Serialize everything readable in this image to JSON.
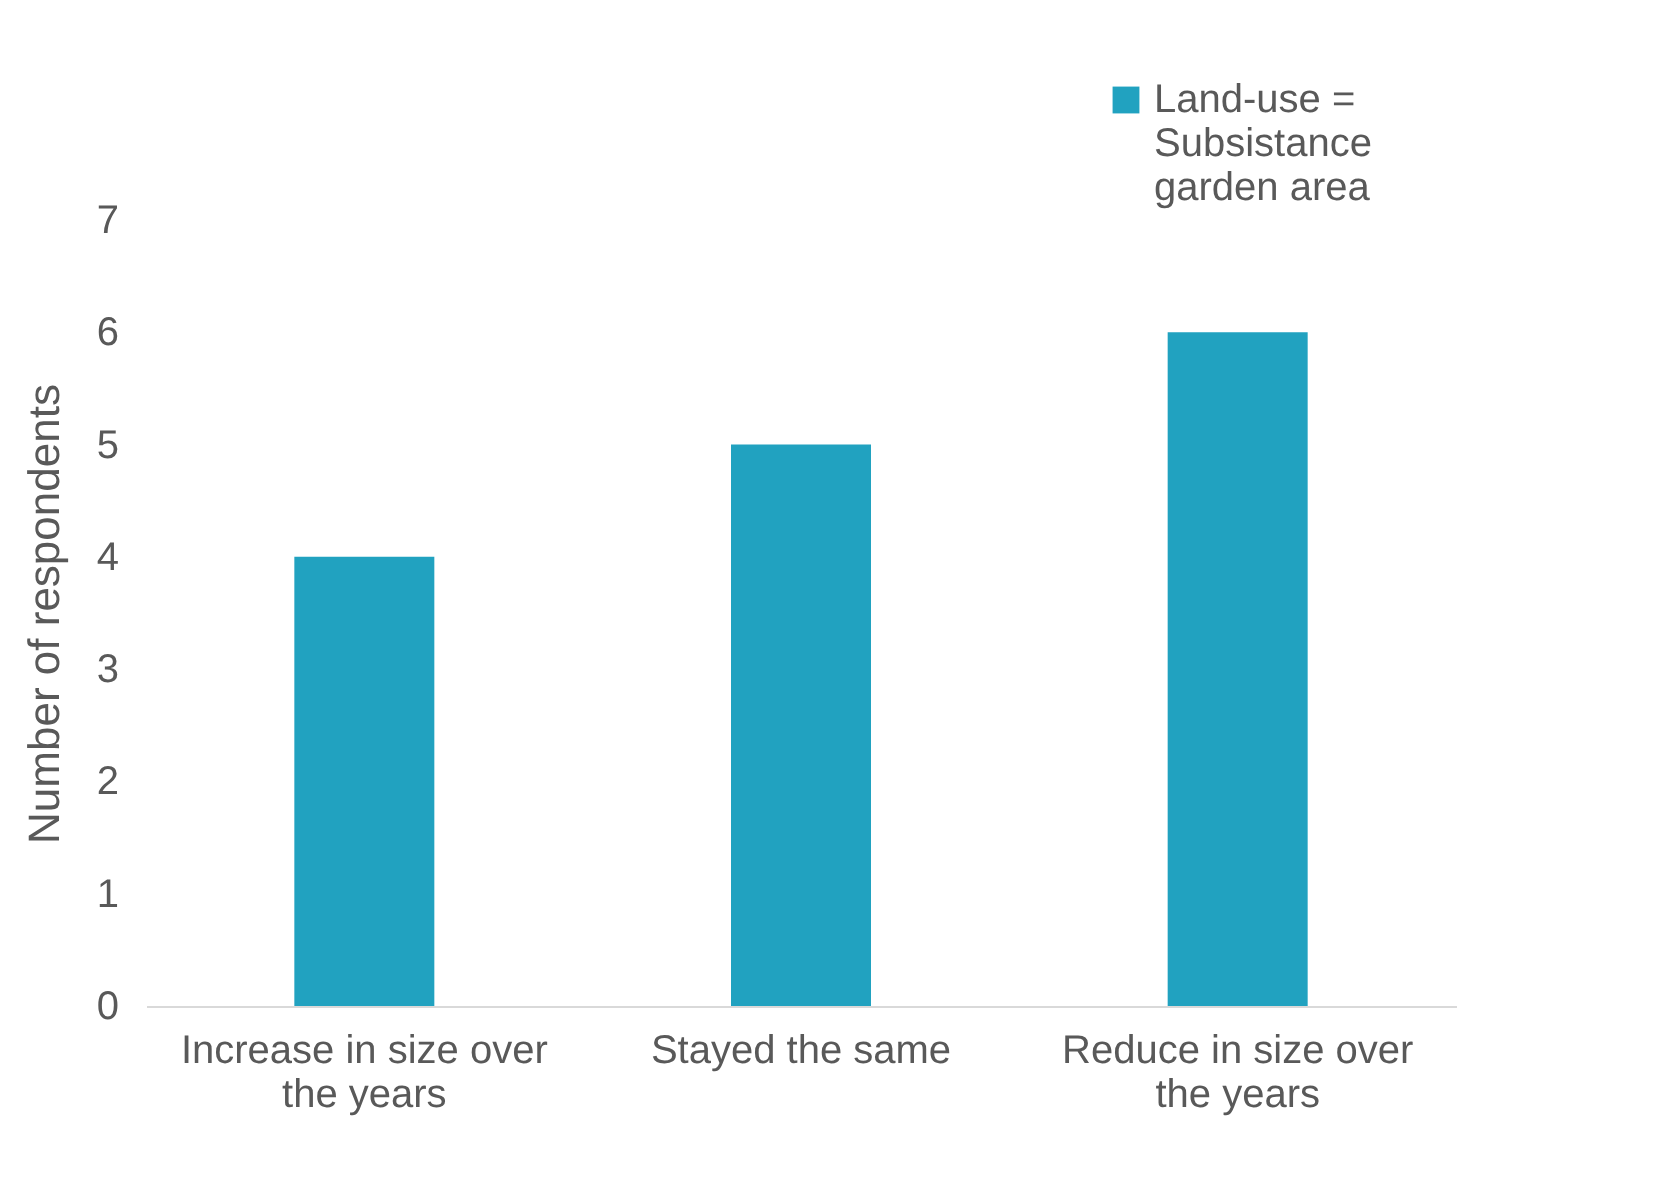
{
  "chart_data": {
    "type": "bar",
    "categories": [
      "Increase in size over the years",
      "Stayed the same",
      "Reduce in size over the years"
    ],
    "series": [
      {
        "name": "Land-use = Subsistance garden area",
        "color": "#21a2c0",
        "values": [
          4,
          5,
          6
        ]
      }
    ],
    "ylabel": "Number of respondents",
    "ylim": [
      0,
      7
    ],
    "yticks": [
      0,
      1,
      2,
      3,
      4,
      5,
      6,
      7
    ],
    "grid": false,
    "legend": "top right"
  }
}
